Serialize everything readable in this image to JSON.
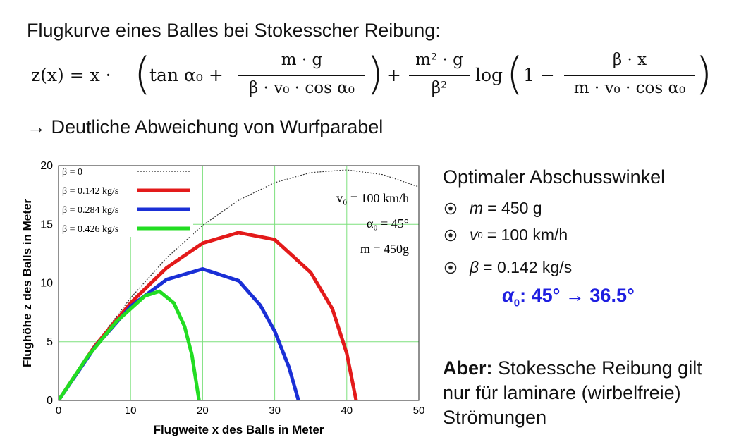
{
  "header": {
    "title": "Flugkurve eines Balles bei Stokesscher Reibung:",
    "subtitle": "→ Deutliche Abweichung von Wurfparabel"
  },
  "formula": {
    "lhs": "z(x) = x ·",
    "term1": "tan α₀ +",
    "frac1_num": "m · g",
    "frac1_den": "β · v₀ · cos α₀",
    "plus": "+",
    "frac2_num": "m² · g",
    "frac2_den": "β²",
    "log": "log",
    "term2": "1 −",
    "frac3_num": "β · x",
    "frac3_den": "m · v₀ · cos α₀"
  },
  "panel": {
    "heading": "Optimaler Abschusswinkel",
    "bullets": [
      {
        "symbol": "m",
        "text": "= 450 g"
      },
      {
        "symbol": "v",
        "sub": "0",
        "text": "= 100 km/h"
      },
      {
        "symbol": "β",
        "text": "= 0.142 kg/s"
      }
    ],
    "result": {
      "symbol": "α",
      "sub": "0",
      "text": ": 45° → 36.5°"
    },
    "note_bold": "Aber:",
    "note": "Stokessche Reibung gilt nur für laminare (wirbelfreie) Strömungen"
  },
  "chart_data": {
    "type": "line",
    "xlabel": "Flugweite x des Balls in Meter",
    "ylabel": "Flughöhe z des Balls in Meter",
    "xlim": [
      0,
      50
    ],
    "ylim": [
      0,
      20
    ],
    "xticks": [
      0,
      10,
      20,
      30,
      40,
      50
    ],
    "yticks": [
      0,
      5,
      10,
      15,
      20
    ],
    "grid": true,
    "grid_color": "#7de07d",
    "legend": "upper left",
    "annotations": [
      "v₀ = 100 km/h",
      "α₀ = 45°",
      "m = 450g"
    ],
    "series": [
      {
        "name": "β = 0",
        "color": "#333333",
        "linestyle": "dotted",
        "x": [
          0,
          5,
          10,
          15,
          20,
          25,
          30,
          35,
          40,
          45,
          50
        ],
        "values": [
          0,
          4.68,
          8.73,
          12.14,
          14.91,
          17.05,
          18.55,
          19.41,
          19.64,
          19.24,
          18.19
        ]
      },
      {
        "name": "β = 0.142 kg/s",
        "color": "#e31a1a",
        "linestyle": "solid",
        "x": [
          0,
          5,
          10,
          15,
          20,
          25,
          30,
          35,
          38,
          40,
          41.3
        ],
        "values": [
          0,
          4.6,
          8.3,
          11.3,
          13.4,
          14.3,
          13.7,
          10.9,
          7.8,
          4.0,
          0
        ]
      },
      {
        "name": "β = 0.284 kg/s",
        "color": "#1a2fd6",
        "linestyle": "solid",
        "x": [
          0,
          5,
          10,
          15,
          20,
          25,
          28,
          30,
          32,
          33.3
        ],
        "values": [
          0,
          4.5,
          8.0,
          10.3,
          11.2,
          10.2,
          8.1,
          5.9,
          2.8,
          0
        ]
      },
      {
        "name": "β = 0.426 kg/s",
        "color": "#22dd22",
        "linestyle": "solid",
        "x": [
          0,
          4,
          8,
          12,
          14,
          16,
          17.5,
          18.5,
          19.5
        ],
        "values": [
          0,
          3.7,
          6.7,
          8.9,
          9.3,
          8.3,
          6.3,
          3.9,
          0
        ]
      }
    ]
  }
}
